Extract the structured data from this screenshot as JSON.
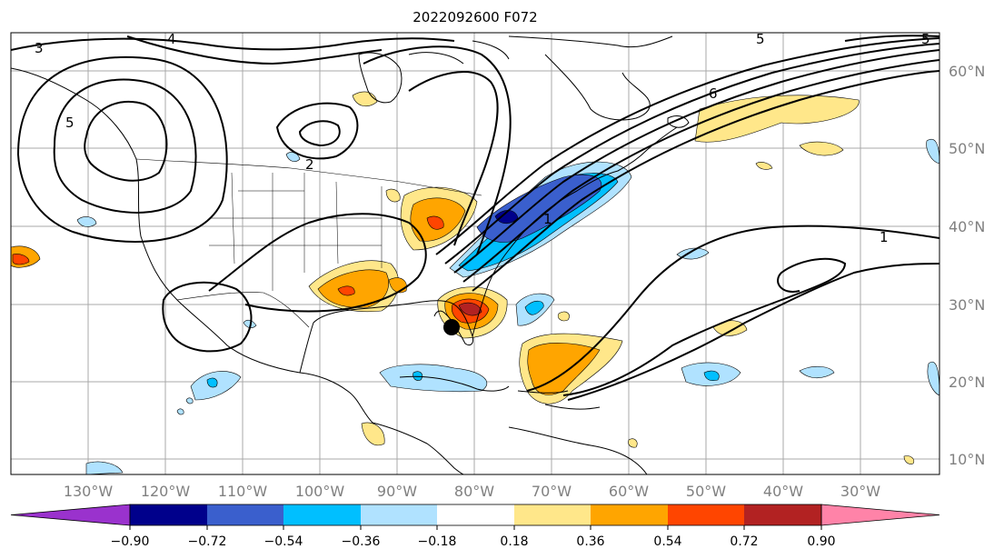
{
  "title": "2022092600 F072",
  "lon_labels": [
    "130°W",
    "120°W",
    "110°W",
    "100°W",
    "90°W",
    "80°W",
    "70°W",
    "60°W",
    "50°W",
    "40°W",
    "30°W"
  ],
  "lat_labels": [
    "10°N",
    "20°N",
    "30°N",
    "40°N",
    "50°N",
    "60°N"
  ],
  "contour_labels": [
    "3",
    "4",
    "5",
    "6",
    "2",
    "1",
    "1",
    "5",
    "5"
  ],
  "colorbar": {
    "ticks": [
      "−0.90",
      "−0.72",
      "−0.54",
      "−0.36",
      "−0.18",
      "0.18",
      "0.36",
      "0.54",
      "0.72",
      "0.90"
    ],
    "colors": [
      "#9a32cd",
      "#00008b",
      "#3a5fcd",
      "#00bfff",
      "#b0e2ff",
      "#ffffff",
      "#ffe78a",
      "#ffa500",
      "#ff4500",
      "#b22222",
      "#ff83a8"
    ]
  },
  "marker": "storm-center-dot"
}
